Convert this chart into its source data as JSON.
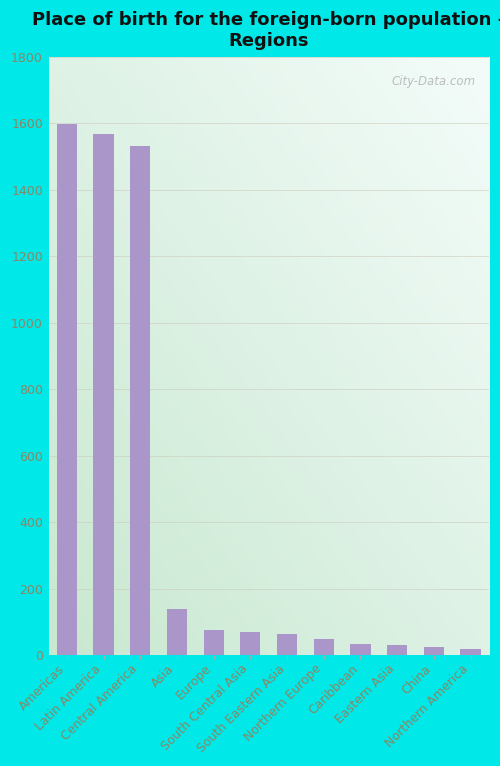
{
  "title": "Place of birth for the foreign-born population -\nRegions",
  "categories": [
    "Americas",
    "Latin America",
    "Central America",
    "Asia",
    "Europe",
    "South Central Asia",
    "South Eastern Asia",
    "Northern Europe",
    "Caribbean",
    "Eastern Asia",
    "China",
    "Northern America"
  ],
  "values": [
    1599,
    1568,
    1532,
    140,
    75,
    70,
    65,
    50,
    35,
    30,
    25,
    20
  ],
  "bar_color": "#aa96c8",
  "bg_color_outer": "#00e8e8",
  "bg_gradient_top_left": "#e8f8f4",
  "bg_gradient_bottom_right": "#d8eedd",
  "ylim": [
    0,
    1800
  ],
  "yticks": [
    0,
    200,
    400,
    600,
    800,
    1000,
    1200,
    1400,
    1600,
    1800
  ],
  "title_fontsize": 13,
  "tick_fontsize": 9,
  "ytick_color": "#888866",
  "xtick_color": "#888866",
  "watermark": "City-Data.com",
  "grid_color": "#ccccbb",
  "grid_alpha": 0.6
}
